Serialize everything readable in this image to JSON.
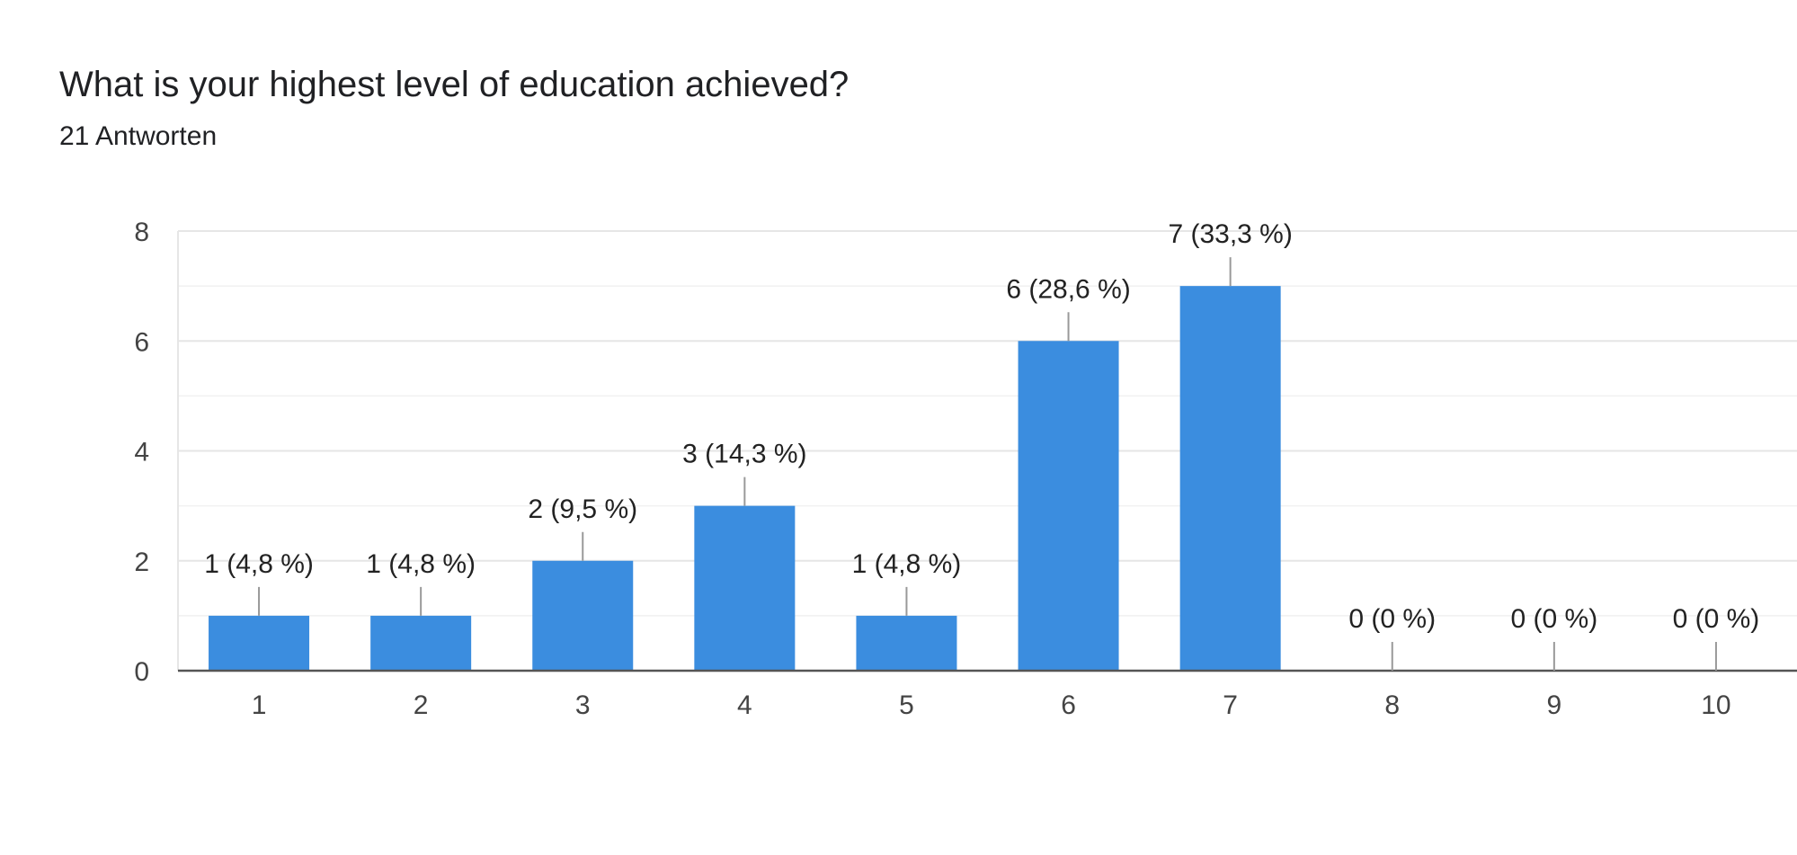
{
  "header": {
    "title": "What is your highest level of education achieved?",
    "responses": "21 Antworten"
  },
  "chart_data": {
    "type": "bar",
    "categories": [
      "1",
      "2",
      "3",
      "4",
      "5",
      "6",
      "7",
      "8",
      "9",
      "10"
    ],
    "values": [
      1,
      1,
      2,
      3,
      1,
      6,
      7,
      0,
      0,
      0
    ],
    "data_labels": [
      "1 (4,8 %)",
      "1 (4,8 %)",
      "2 (9,5 %)",
      "3 (14,3 %)",
      "1 (4,8 %)",
      "6 (28,6 %)",
      "7 (33,3 %)",
      "0 (0 %)",
      "0 (0 %)",
      "0 (0 %)"
    ],
    "y_ticks": [
      0,
      2,
      4,
      6,
      8
    ],
    "ylim": [
      0,
      8
    ],
    "grid": true,
    "colors": {
      "bar": "#3b8ddf",
      "grid": "#eeeeee",
      "axis": "#555555",
      "leader": "#999999"
    }
  }
}
